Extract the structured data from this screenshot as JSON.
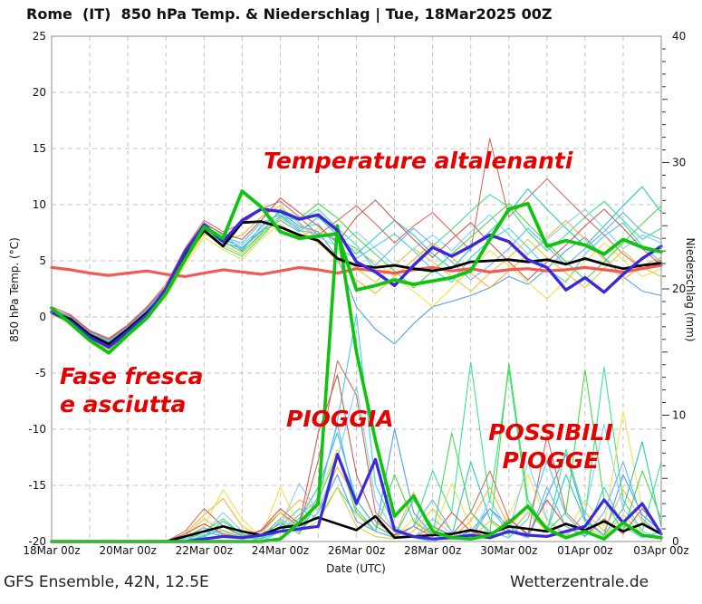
{
  "title": "Rome  (IT)  850 hPa Temp. & Niederschlag | Tue, 18Mar2025 00Z",
  "footer": {
    "left": "GFS Ensemble, 42N, 12.5E",
    "right": "Wetterzentrale.de"
  },
  "annotations": {
    "color": "#e60000",
    "fluctuating": {
      "text": "Temperature altalenanti"
    },
    "cool_dry": {
      "text": "Fase fresca\ne asciutta"
    },
    "rain": {
      "text": "PIOGGIA"
    },
    "possible_rain": {
      "text": "POSSIBILI\nPIOGGE"
    }
  },
  "chart_data": {
    "type": "line",
    "title": "Rome  (IT)  850 hPa Temp. & Niederschlag | Tue, 18Mar2025 00Z",
    "xlabel": "Date (UTC)",
    "ylabel_left": "850 hPa Temp. (°C)",
    "ylabel_right": "Niederschlag (mm)",
    "x_tick_labels": [
      "18Mar 00z",
      "20Mar 00z",
      "22Mar 00z",
      "24Mar 00z",
      "26Mar 00z",
      "28Mar 00z",
      "30Mar 00z",
      "01Apr 00z",
      "03Apr 00z"
    ],
    "x_range_days": 16,
    "time_step_hours": 12,
    "ylim_left": [
      -20,
      25
    ],
    "ylim_right": [
      0,
      40
    ],
    "y_left_ticks": [
      25,
      20,
      15,
      10,
      5,
      0,
      -5,
      -10,
      -15,
      -20
    ],
    "y_right_ticks": [
      0,
      10,
      20,
      30,
      40
    ],
    "grid": "dashed, vertical every 1 day, horizontal every 5 C",
    "legend": "none",
    "colors": {
      "climate_mean": "#f25a52",
      "ensemble_mean": "#000000",
      "control": "#3c28dc",
      "operational": "#0fc40f",
      "grid": "#c4c4c4",
      "border": "#8c8c8c",
      "members": [
        "#3fd0e8",
        "#3be48f",
        "#4f9ff0",
        "#ffb036",
        "#f2e049",
        "#d96a5f",
        "#2bc9b9",
        "#7fd0ff",
        "#e3c93c",
        "#c85c54",
        "#4cd84c",
        "#68b3f2"
      ]
    },
    "temperature": {
      "unit": "C",
      "climate_mean": [
        4.4,
        4.2,
        3.9,
        3.7,
        3.9,
        4.1,
        3.8,
        3.6,
        3.9,
        4.2,
        4.0,
        3.8,
        4.1,
        4.4,
        4.2,
        3.9,
        4.3,
        4.1,
        3.9,
        4.2,
        4.4,
        4.1,
        4.3,
        4.0,
        4.2,
        4.3,
        4.1,
        4.2,
        4.4,
        4.2,
        4.0,
        4.3,
        4.6
      ],
      "ensemble_mean": [
        0.5,
        -0.2,
        -1.6,
        -2.4,
        -1.1,
        0.4,
        2.3,
        5.4,
        7.7,
        6.3,
        8.4,
        8.5,
        8.0,
        7.3,
        6.8,
        5.2,
        4.6,
        4.4,
        4.6,
        4.3,
        4.1,
        4.4,
        4.9,
        5.0,
        5.1,
        4.9,
        5.1,
        4.7,
        5.2,
        4.7,
        4.3,
        4.6,
        4.8
      ],
      "control": [
        0.4,
        -0.4,
        -1.8,
        -2.7,
        -1.3,
        0.2,
        2.5,
        5.8,
        8.2,
        6.7,
        8.6,
        9.6,
        9.4,
        8.7,
        9.1,
        7.7,
        4.9,
        4.0,
        2.8,
        4.6,
        6.2,
        5.4,
        6.3,
        7.3,
        6.7,
        5.1,
        4.4,
        2.4,
        3.5,
        2.2,
        3.8,
        5.2,
        6.3
      ],
      "operational": [
        0.8,
        -0.6,
        -2.1,
        -3.2,
        -1.6,
        -0.1,
        2.1,
        5.1,
        8.0,
        7.0,
        11.2,
        9.8,
        7.6,
        7.0,
        7.2,
        7.4,
        2.4,
        2.8,
        3.3,
        2.9,
        3.2,
        3.5,
        4.1,
        6.9,
        9.6,
        10.1,
        6.3,
        6.8,
        6.4,
        5.6,
        6.9,
        6.2,
        5.8
      ],
      "members": [
        [
          0.7,
          0.0,
          -1.4,
          -2.1,
          -0.9,
          0.7,
          2.6,
          5.8,
          8.2,
          7.1,
          6.6,
          8.4,
          9.1,
          7.9,
          8.3,
          6.1,
          5.2,
          6.3,
          7.4,
          5.9,
          4.2,
          3.1,
          5.3,
          6.8,
          7.9,
          6.2,
          4.3,
          3.1,
          5.6,
          7.2,
          8.4,
          6.3,
          4.9
        ],
        [
          0.3,
          -0.5,
          -1.9,
          -2.6,
          -1.3,
          0.2,
          2.1,
          5.1,
          7.6,
          6.2,
          5.4,
          7.1,
          8.9,
          8.6,
          9.6,
          7.9,
          6.4,
          4.1,
          2.9,
          4.6,
          6.3,
          7.8,
          9.4,
          10.9,
          9.8,
          7.6,
          5.9,
          7.3,
          8.9,
          10.3,
          8.6,
          6.9,
          7.9
        ],
        [
          0.6,
          -0.1,
          -1.5,
          -2.2,
          -1.0,
          0.5,
          2.4,
          5.6,
          8.4,
          7.3,
          5.9,
          8.1,
          9.3,
          8.1,
          7.6,
          5.3,
          0.9,
          -1.1,
          -2.4,
          -0.6,
          0.9,
          1.4,
          1.9,
          2.6,
          3.6,
          2.9,
          4.3,
          5.9,
          7.1,
          5.3,
          3.6,
          2.3,
          1.9
        ],
        [
          0.4,
          -0.4,
          -1.8,
          -2.7,
          -1.4,
          0.1,
          1.9,
          4.9,
          7.4,
          6.8,
          7.3,
          8.9,
          9.9,
          8.3,
          6.9,
          4.9,
          3.3,
          2.1,
          3.6,
          5.1,
          6.6,
          5.3,
          3.9,
          2.6,
          4.1,
          5.6,
          7.1,
          8.6,
          6.9,
          5.1,
          3.3,
          4.6,
          5.3
        ],
        [
          0.2,
          -0.6,
          -2.0,
          -2.9,
          -1.6,
          -0.1,
          1.8,
          4.6,
          7.1,
          6.0,
          5.1,
          6.9,
          8.3,
          7.1,
          7.9,
          6.6,
          5.9,
          4.9,
          3.6,
          2.3,
          0.9,
          2.6,
          4.3,
          5.9,
          4.6,
          3.1,
          1.6,
          3.3,
          4.9,
          6.6,
          5.1,
          3.6,
          4.3
        ],
        [
          0.9,
          0.2,
          -1.2,
          -1.9,
          -0.7,
          0.9,
          2.9,
          6.1,
          8.6,
          7.6,
          8.3,
          9.6,
          10.3,
          8.9,
          7.3,
          8.6,
          9.9,
          8.3,
          6.6,
          8.1,
          9.3,
          7.6,
          5.9,
          15.9,
          8.9,
          10.6,
          12.3,
          10.6,
          8.9,
          7.3,
          5.6,
          4.3,
          5.1
        ],
        [
          0.5,
          -0.3,
          -1.7,
          -2.4,
          -1.1,
          0.4,
          2.2,
          5.3,
          7.8,
          6.6,
          6.1,
          7.6,
          8.6,
          7.6,
          8.9,
          7.3,
          5.6,
          7.1,
          8.6,
          7.3,
          5.6,
          4.3,
          6.1,
          7.6,
          9.3,
          11.4,
          9.6,
          7.9,
          6.3,
          8.1,
          9.9,
          11.6,
          9.3
        ],
        [
          0.6,
          -0.2,
          -1.5,
          -2.3,
          -1.0,
          0.6,
          2.5,
          5.7,
          8.1,
          7.0,
          6.4,
          7.9,
          9.4,
          8.4,
          7.1,
          6.3,
          7.6,
          6.1,
          4.6,
          6.1,
          7.3,
          5.9,
          7.6,
          9.1,
          7.3,
          5.6,
          6.9,
          8.3,
          9.6,
          7.9,
          6.1,
          7.3,
          6.6
        ],
        [
          0.3,
          -0.5,
          -1.8,
          -2.6,
          -1.3,
          0.3,
          2.0,
          5.0,
          7.6,
          6.4,
          5.6,
          7.3,
          8.8,
          7.8,
          6.6,
          5.1,
          4.3,
          3.1,
          4.6,
          6.1,
          4.9,
          3.6,
          2.3,
          3.9,
          5.3,
          6.9,
          5.3,
          3.9,
          2.6,
          4.3,
          5.9,
          4.4,
          3.6
        ],
        [
          0.7,
          0.1,
          -1.3,
          -2.0,
          -0.8,
          0.8,
          2.7,
          5.9,
          8.3,
          7.4,
          6.9,
          8.6,
          10.6,
          9.3,
          8.1,
          6.6,
          8.9,
          10.4,
          8.6,
          6.9,
          5.3,
          6.9,
          8.4,
          6.6,
          4.9,
          3.3,
          4.9,
          6.4,
          8.1,
          9.6,
          7.9,
          6.1,
          4.6
        ],
        [
          0.4,
          -0.4,
          -1.7,
          -2.5,
          -1.2,
          0.3,
          2.1,
          5.2,
          7.7,
          6.7,
          5.8,
          7.4,
          9.6,
          8.8,
          10.1,
          8.8,
          7.1,
          5.6,
          4.1,
          2.6,
          4.1,
          5.6,
          7.1,
          8.6,
          10.1,
          8.3,
          6.6,
          4.9,
          3.3,
          4.9,
          6.6,
          8.3,
          9.9
        ],
        [
          0.8,
          0.0,
          -1.4,
          -2.2,
          -0.9,
          0.7,
          2.6,
          5.5,
          8.0,
          6.9,
          6.2,
          7.7,
          9.0,
          7.7,
          7.4,
          6.9,
          6.1,
          4.6,
          6.3,
          7.9,
          6.4,
          4.9,
          3.3,
          4.6,
          6.1,
          7.9,
          6.3,
          4.6,
          6.1,
          7.6,
          9.3,
          7.6,
          6.9
        ]
      ]
    },
    "precipitation": {
      "unit": "mm",
      "ensemble_mean": [
        0,
        0,
        0,
        0,
        0,
        0,
        0,
        0.4,
        0.8,
        1.2,
        0.8,
        0.5,
        1.1,
        1.3,
        1.9,
        1.4,
        0.9,
        2.0,
        0.3,
        0.4,
        0.5,
        0.6,
        0.9,
        0.6,
        1.2,
        1.0,
        0.8,
        1.4,
        0.9,
        1.6,
        0.8,
        1.4,
        0.6
      ],
      "control": [
        0,
        0,
        0,
        0,
        0,
        0,
        0,
        0,
        0.2,
        0.4,
        0.3,
        0.5,
        0.8,
        1.0,
        1.2,
        6.9,
        3.0,
        6.5,
        0.9,
        0.4,
        0.2,
        0.3,
        0.5,
        0.3,
        0.8,
        0.5,
        0.4,
        0.8,
        1.2,
        3.3,
        1.5,
        3.0,
        0.6
      ],
      "operational": [
        0,
        0,
        0,
        0,
        0,
        0,
        0,
        0,
        0,
        0,
        0,
        0,
        0.2,
        1.5,
        3.0,
        25.0,
        15.0,
        8.0,
        2.0,
        3.6,
        0.8,
        0.3,
        0.2,
        0.5,
        1.5,
        2.8,
        1.0,
        0.3,
        0.8,
        0.2,
        1.5,
        0.5,
        0.3
      ],
      "members": [
        [
          0,
          0,
          0,
          0,
          0,
          0,
          0,
          0,
          0.3,
          1.2,
          0.5,
          0,
          0.8,
          2.1,
          3.3,
          9.5,
          18.0,
          4.5,
          1.2,
          0.3,
          0,
          0.5,
          2.3,
          0.8,
          0.3,
          1.8,
          6.4,
          2.1,
          0.5,
          4.3,
          1.2,
          0.3,
          0.8
        ],
        [
          0,
          0,
          0,
          0,
          0,
          0,
          0,
          0,
          0.5,
          0.9,
          0.3,
          0.2,
          1.2,
          2.6,
          1.8,
          4.3,
          2.1,
          0.8,
          0.3,
          1.2,
          5.6,
          2.3,
          14.2,
          3.1,
          13.6,
          2.6,
          0.8,
          7.3,
          2.1,
          13.8,
          3.3,
          0.8,
          6.3
        ],
        [
          0,
          0,
          0,
          0,
          0,
          0,
          0,
          0.2,
          0.8,
          0.4,
          0.2,
          0.6,
          1.4,
          0.8,
          2.3,
          5.3,
          1.6,
          0.8,
          8.9,
          2.3,
          0.5,
          0.2,
          0.8,
          2.6,
          1.2,
          0.3,
          3.6,
          6.9,
          1.8,
          0.5,
          5.3,
          2.1,
          0.8
        ],
        [
          0,
          0,
          0,
          0,
          0,
          0,
          0,
          0.6,
          2.1,
          3.4,
          1.2,
          0.4,
          1.8,
          3.3,
          2.6,
          5.9,
          3.3,
          1.2,
          0.5,
          3.9,
          0.8,
          0.3,
          1.6,
          4.3,
          1.2,
          2.8,
          0.9,
          0.3,
          2.3,
          0.8,
          4.1,
          1.6,
          0.5
        ],
        [
          0,
          0,
          0,
          0,
          0,
          0,
          0,
          0.3,
          1.2,
          4.1,
          1.8,
          0.3,
          4.3,
          1.2,
          3.6,
          7.3,
          2.1,
          0.8,
          0.3,
          1.8,
          0.5,
          4.6,
          1.2,
          0.3,
          2.1,
          5.3,
          1.6,
          0.5,
          3.3,
          1.2,
          10.3,
          2.6,
          0.8
        ],
        [
          0,
          0,
          0,
          0,
          0,
          0,
          0,
          0.8,
          2.6,
          1.2,
          0.4,
          0.8,
          2.3,
          1.2,
          6.4,
          14.3,
          11.6,
          2.3,
          0.8,
          0.3,
          1.2,
          0.5,
          2.3,
          5.6,
          1.8,
          0.5,
          8.4,
          2.3,
          0.8,
          0.3,
          1.6,
          0.5,
          0.2
        ],
        [
          0,
          0,
          0,
          0,
          0,
          0,
          0,
          0,
          0.4,
          1.6,
          0.6,
          0.2,
          0.8,
          1.8,
          4.3,
          8.6,
          3.3,
          1.2,
          0.4,
          3.3,
          1.2,
          0.4,
          6.3,
          1.8,
          0.6,
          2.3,
          0.8,
          5.3,
          1.6,
          0.5,
          2.6,
          7.9,
          1.2
        ],
        [
          0,
          0,
          0,
          0,
          0,
          0,
          0,
          0.2,
          0.6,
          2.3,
          0.8,
          0.3,
          1.2,
          4.6,
          2.3,
          6.6,
          12.3,
          3.3,
          0.8,
          0.3,
          1.8,
          0.6,
          0.2,
          3.3,
          0.8,
          6.3,
          1.8,
          0.5,
          2.3,
          9.3,
          2.6,
          0.8,
          0.3
        ],
        [
          0,
          0,
          0,
          0,
          0,
          0,
          0,
          0.4,
          1.8,
          0.8,
          0.2,
          0.6,
          2.3,
          0.8,
          1.6,
          4.3,
          1.2,
          0.4,
          0.2,
          0.8,
          2.6,
          0.8,
          0.3,
          1.6,
          0.5,
          2.3,
          0.8,
          0.2,
          1.2,
          0.4,
          2.1,
          0.6,
          0.2
        ],
        [
          0,
          0,
          0,
          0,
          0,
          0,
          0,
          0.6,
          1.4,
          0.6,
          0.3,
          0.9,
          2.6,
          1.4,
          8.6,
          13.2,
          5.3,
          1.6,
          0.5,
          1.2,
          0.4,
          2.3,
          0.8,
          0.3,
          1.8,
          0.6,
          3.3,
          1.2,
          0.4,
          1.8,
          0.6,
          2.6,
          0.8
        ],
        [
          0,
          0,
          0,
          0,
          0,
          0,
          0,
          0,
          0.8,
          1.8,
          0.6,
          0.2,
          1.6,
          0.6,
          3.3,
          6.9,
          2.3,
          0.8,
          5.3,
          1.6,
          0.5,
          8.6,
          2.3,
          0.6,
          14.1,
          3.3,
          0.8,
          2.3,
          13.6,
          3.3,
          0.8,
          5.6,
          1.8
        ],
        [
          0,
          0,
          0,
          0,
          0,
          0,
          0,
          0.3,
          1.1,
          0.5,
          0.2,
          0.4,
          1.8,
          0.8,
          3.6,
          9.3,
          2.6,
          0.8,
          0.3,
          1.2,
          3.3,
          0.8,
          0.3,
          2.6,
          0.8,
          0.3,
          4.3,
          1.2,
          0.4,
          2.3,
          6.3,
          1.8,
          0.5
        ]
      ]
    }
  }
}
